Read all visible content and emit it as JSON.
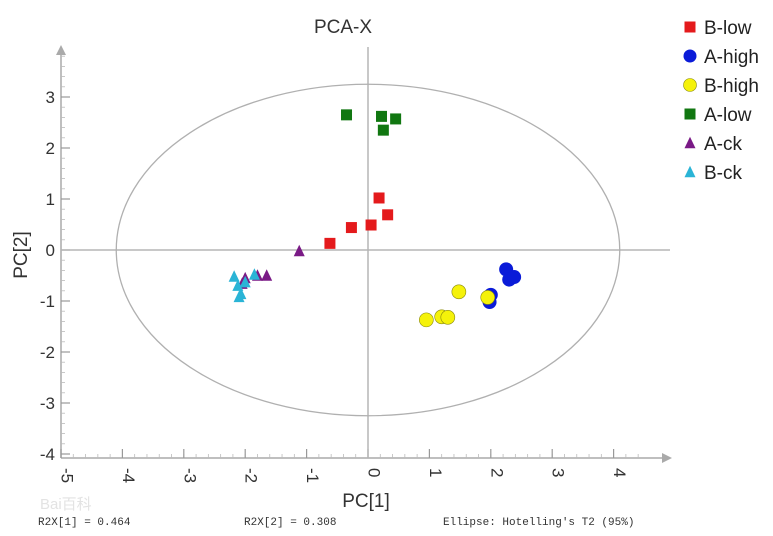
{
  "chart_data": {
    "type": "scatter",
    "title": "PCA-X",
    "xlabel": "PC[1]",
    "ylabel": "PC[2]",
    "xlim": [
      -5,
      5
    ],
    "ylim": [
      -4,
      4
    ],
    "xticks": [
      -5,
      -4,
      -3,
      -2,
      -1,
      0,
      1,
      2,
      3,
      4
    ],
    "yticks": [
      -4,
      -3,
      -2,
      -1,
      0,
      1,
      2,
      3
    ],
    "legend_position": "right",
    "ellipse": {
      "cx": 0,
      "cy": 0,
      "rx": 4.1,
      "ry": 3.25
    },
    "series": [
      {
        "name": "B-low",
        "marker": "square",
        "color": "#e41a1c",
        "points": [
          [
            -0.62,
            0.13
          ],
          [
            -0.27,
            0.44
          ],
          [
            0.05,
            0.49
          ],
          [
            0.18,
            1.02
          ],
          [
            0.32,
            0.69
          ]
        ]
      },
      {
        "name": "A-high",
        "marker": "circle",
        "color": "#0a1bd8",
        "points": [
          [
            1.98,
            -1.02
          ],
          [
            2.0,
            -0.88
          ],
          [
            2.25,
            -0.38
          ],
          [
            2.3,
            -0.58
          ],
          [
            2.38,
            -0.53
          ]
        ]
      },
      {
        "name": "B-high",
        "marker": "circle",
        "color": "#f5f20a",
        "points": [
          [
            0.95,
            -1.37
          ],
          [
            1.2,
            -1.31
          ],
          [
            1.3,
            -1.32
          ],
          [
            1.48,
            -0.82
          ],
          [
            1.95,
            -0.93
          ]
        ]
      },
      {
        "name": "A-low",
        "marker": "square",
        "color": "#117711",
        "points": [
          [
            -0.35,
            2.65
          ],
          [
            0.22,
            2.62
          ],
          [
            0.25,
            2.35
          ],
          [
            0.45,
            2.57
          ]
        ]
      },
      {
        "name": "A-ck",
        "marker": "triangle",
        "color": "#7a1a86",
        "points": [
          [
            -1.12,
            -0.02
          ],
          [
            -1.65,
            -0.5
          ],
          [
            -1.8,
            -0.5
          ],
          [
            -2.0,
            -0.55
          ],
          [
            -2.05,
            -0.66
          ]
        ]
      },
      {
        "name": "B-ck",
        "marker": "triangle",
        "color": "#2ab4d6",
        "points": [
          [
            -2.18,
            -0.52
          ],
          [
            -2.12,
            -0.7
          ],
          [
            -2.07,
            -0.86
          ],
          [
            -2.1,
            -0.92
          ],
          [
            -2.0,
            -0.63
          ],
          [
            -1.85,
            -0.48
          ]
        ]
      }
    ]
  },
  "footer": {
    "r2x1": "R2X[1] = 0.464",
    "r2x2": "R2X[2] = 0.308",
    "ellipse_note": "Ellipse: Hotelling's T2 (95%)"
  },
  "watermark": {
    "text": "Bai百科"
  }
}
